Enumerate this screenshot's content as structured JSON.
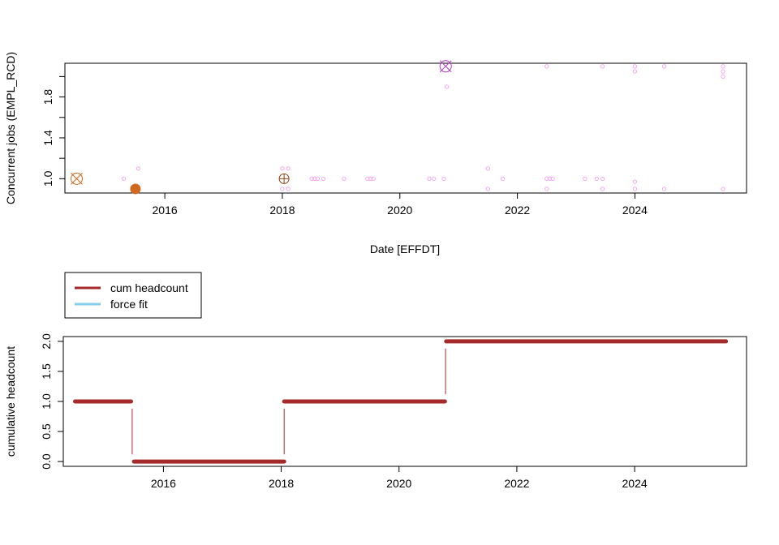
{
  "colors": {
    "faint_point": "#f5a8f2",
    "event_orange": "#d2691e",
    "event_marker": "#8b4513",
    "peak_marker": "#b040c0",
    "step_line": "#a52a2a",
    "fit_line": "#87ceeb",
    "axis": "#000000"
  },
  "chart_data": [
    {
      "type": "scatter",
      "xlabel": "Date [EFFDT]",
      "ylabel": "Concurrent jobs (EMPL_RCD)",
      "x_ticks": [
        "2016",
        "2018",
        "2020",
        "2022",
        "2024"
      ],
      "y_ticks": [
        "1.0",
        "1.4",
        "1.8"
      ],
      "xlim": [
        2014.3,
        2025.9
      ],
      "ylim": [
        0.86,
        2.13
      ],
      "grid": false,
      "series": [
        {
          "marker": "open-circle-small",
          "points": [
            [
              2015.3,
              1.0
            ],
            [
              2015.55,
              1.1
            ],
            [
              2018.0,
              1.1
            ],
            [
              2018.1,
              1.1
            ],
            [
              2018.0,
              0.9
            ],
            [
              2018.1,
              0.9
            ],
            [
              2018.5,
              1.0
            ],
            [
              2018.55,
              1.0
            ],
            [
              2018.6,
              1.0
            ],
            [
              2018.7,
              1.0
            ],
            [
              2019.05,
              1.0
            ],
            [
              2019.45,
              1.0
            ],
            [
              2019.5,
              1.0
            ],
            [
              2019.55,
              1.0
            ],
            [
              2020.5,
              1.0
            ],
            [
              2020.58,
              1.0
            ],
            [
              2020.75,
              1.0
            ],
            [
              2020.8,
              1.9
            ],
            [
              2021.5,
              1.1
            ],
            [
              2021.5,
              0.9
            ],
            [
              2021.75,
              1.0
            ],
            [
              2022.5,
              2.1
            ],
            [
              2022.5,
              1.0
            ],
            [
              2022.55,
              1.0
            ],
            [
              2022.6,
              1.0
            ],
            [
              2022.5,
              0.9
            ],
            [
              2023.15,
              1.0
            ],
            [
              2023.35,
              1.0
            ],
            [
              2023.45,
              1.0
            ],
            [
              2023.45,
              2.1
            ],
            [
              2023.45,
              0.9
            ],
            [
              2024.0,
              2.1
            ],
            [
              2024.0,
              2.05
            ],
            [
              2024.0,
              0.97
            ],
            [
              2024.0,
              0.9
            ],
            [
              2024.5,
              2.1
            ],
            [
              2024.5,
              0.9
            ],
            [
              2025.5,
              2.1
            ],
            [
              2025.5,
              2.05
            ],
            [
              2025.5,
              2.0
            ],
            [
              2025.5,
              0.9
            ]
          ]
        },
        {
          "marker": "circle-x",
          "points": [
            [
              2014.5,
              1.0
            ]
          ]
        },
        {
          "marker": "filled-circle",
          "points": [
            [
              2015.5,
              0.9
            ]
          ]
        },
        {
          "marker": "circle-plus",
          "points": [
            [
              2018.03,
              1.0
            ]
          ]
        },
        {
          "marker": "circle-x",
          "points": [
            [
              2020.78,
              2.1
            ]
          ]
        }
      ]
    },
    {
      "type": "line",
      "ylabel": "cumulative headcount",
      "x_ticks": [
        "2016",
        "2018",
        "2020",
        "2022",
        "2024"
      ],
      "y_ticks": [
        "0.0",
        "0.5",
        "1.0",
        "1.5",
        "2.0"
      ],
      "xlim": [
        2014.3,
        2025.9
      ],
      "ylim": [
        -0.08,
        2.08
      ],
      "grid": false,
      "legend": {
        "position": "top-left",
        "entries": [
          "cum headcount",
          "force fit"
        ]
      },
      "series": [
        {
          "name": "cum headcount",
          "segments": [
            {
              "x": [
                2014.5,
                2015.45
              ],
              "y": [
                1.0,
                1.0
              ]
            },
            {
              "x": [
                2015.5,
                2018.05
              ],
              "y": [
                0.0,
                0.0
              ]
            },
            {
              "x": [
                2018.05,
                2020.78
              ],
              "y": [
                1.0,
                1.0
              ]
            },
            {
              "x": [
                2020.8,
                2025.55
              ],
              "y": [
                2.0,
                2.0
              ]
            }
          ],
          "jumps": [
            {
              "x": 2015.47,
              "y": [
                0.12,
                0.88
              ]
            },
            {
              "x": 2018.05,
              "y": [
                0.12,
                0.88
              ]
            },
            {
              "x": 2020.79,
              "y": [
                1.12,
                1.88
              ]
            }
          ]
        },
        {
          "name": "force fit",
          "segments": []
        }
      ]
    }
  ]
}
